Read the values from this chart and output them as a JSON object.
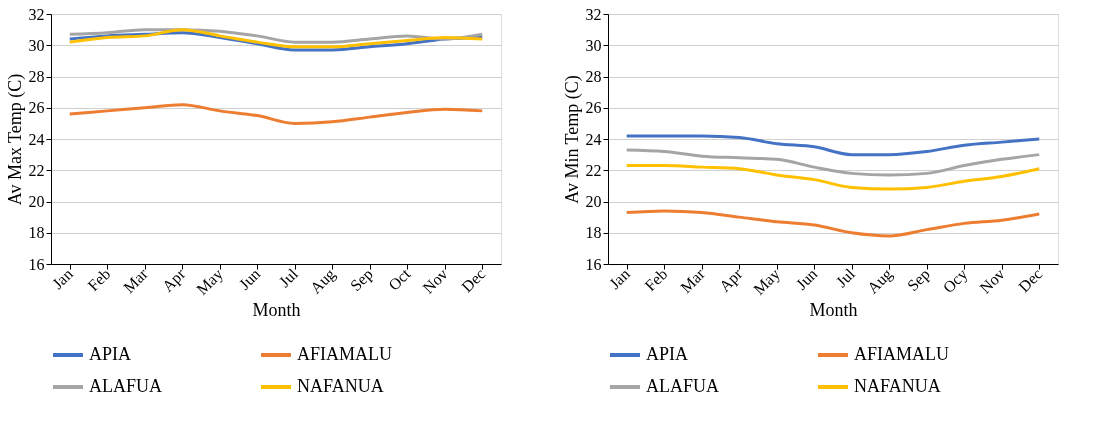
{
  "chart_data": [
    {
      "type": "line",
      "xlabel": "Month",
      "ylabel": "Av Max Temp (C)",
      "categories": [
        "Jan",
        "Feb",
        "Mar",
        "Apr",
        "May",
        "Jun",
        "Jul",
        "Aug",
        "Sep",
        "Oct",
        "Nov",
        "Dec"
      ],
      "ylim": [
        16,
        32
      ],
      "yticks": [
        16,
        18,
        20,
        22,
        24,
        26,
        28,
        30,
        32
      ],
      "grid": "y",
      "legend": "bottom",
      "series": [
        {
          "name": "APIA",
          "color": "#4472c4",
          "values": [
            30.4,
            30.6,
            30.7,
            30.8,
            30.5,
            30.1,
            29.7,
            29.7,
            29.9,
            30.1,
            30.4,
            30.5
          ]
        },
        {
          "name": "AFIAMALU",
          "color": "#ed7d31",
          "values": [
            25.6,
            25.8,
            26.0,
            26.2,
            25.8,
            25.5,
            25.0,
            25.1,
            25.4,
            25.7,
            25.9,
            25.8
          ]
        },
        {
          "name": "ALAFUA",
          "color": "#a5a5a5",
          "values": [
            30.7,
            30.8,
            31.0,
            31.0,
            30.9,
            30.6,
            30.2,
            30.2,
            30.4,
            30.6,
            30.4,
            30.7
          ]
        },
        {
          "name": "NAFANUA",
          "color": "#ffc000",
          "values": [
            30.2,
            30.5,
            30.6,
            31.0,
            30.6,
            30.2,
            29.9,
            29.9,
            30.1,
            30.3,
            30.5,
            30.4
          ]
        }
      ]
    },
    {
      "type": "line",
      "xlabel": "Month",
      "ylabel": "Av Min Temp (C)",
      "categories": [
        "Jan",
        "Feb",
        "Mar",
        "Apr",
        "May",
        "Jun",
        "Jul",
        "Aug",
        "Sep",
        "Ocy",
        "Nov",
        "Dec"
      ],
      "ylim": [
        16,
        32
      ],
      "yticks": [
        16,
        18,
        20,
        22,
        24,
        26,
        28,
        30,
        32
      ],
      "grid": "y",
      "legend": "bottom",
      "series": [
        {
          "name": "APIA",
          "color": "#4472c4",
          "values": [
            24.2,
            24.2,
            24.2,
            24.1,
            23.7,
            23.5,
            23.0,
            23.0,
            23.2,
            23.6,
            23.8,
            24.0
          ]
        },
        {
          "name": "AFIAMALU",
          "color": "#ed7d31",
          "values": [
            19.3,
            19.4,
            19.3,
            19.0,
            18.7,
            18.5,
            18.0,
            17.8,
            18.2,
            18.6,
            18.8,
            19.2
          ]
        },
        {
          "name": "ALAFUA",
          "color": "#a5a5a5",
          "values": [
            23.3,
            23.2,
            22.9,
            22.8,
            22.7,
            22.2,
            21.8,
            21.7,
            21.8,
            22.3,
            22.7,
            23.0
          ]
        },
        {
          "name": "NAFANUA",
          "color": "#ffc000",
          "values": [
            22.3,
            22.3,
            22.2,
            22.1,
            21.7,
            21.4,
            20.9,
            20.8,
            20.9,
            21.3,
            21.6,
            22.1
          ]
        }
      ]
    }
  ]
}
